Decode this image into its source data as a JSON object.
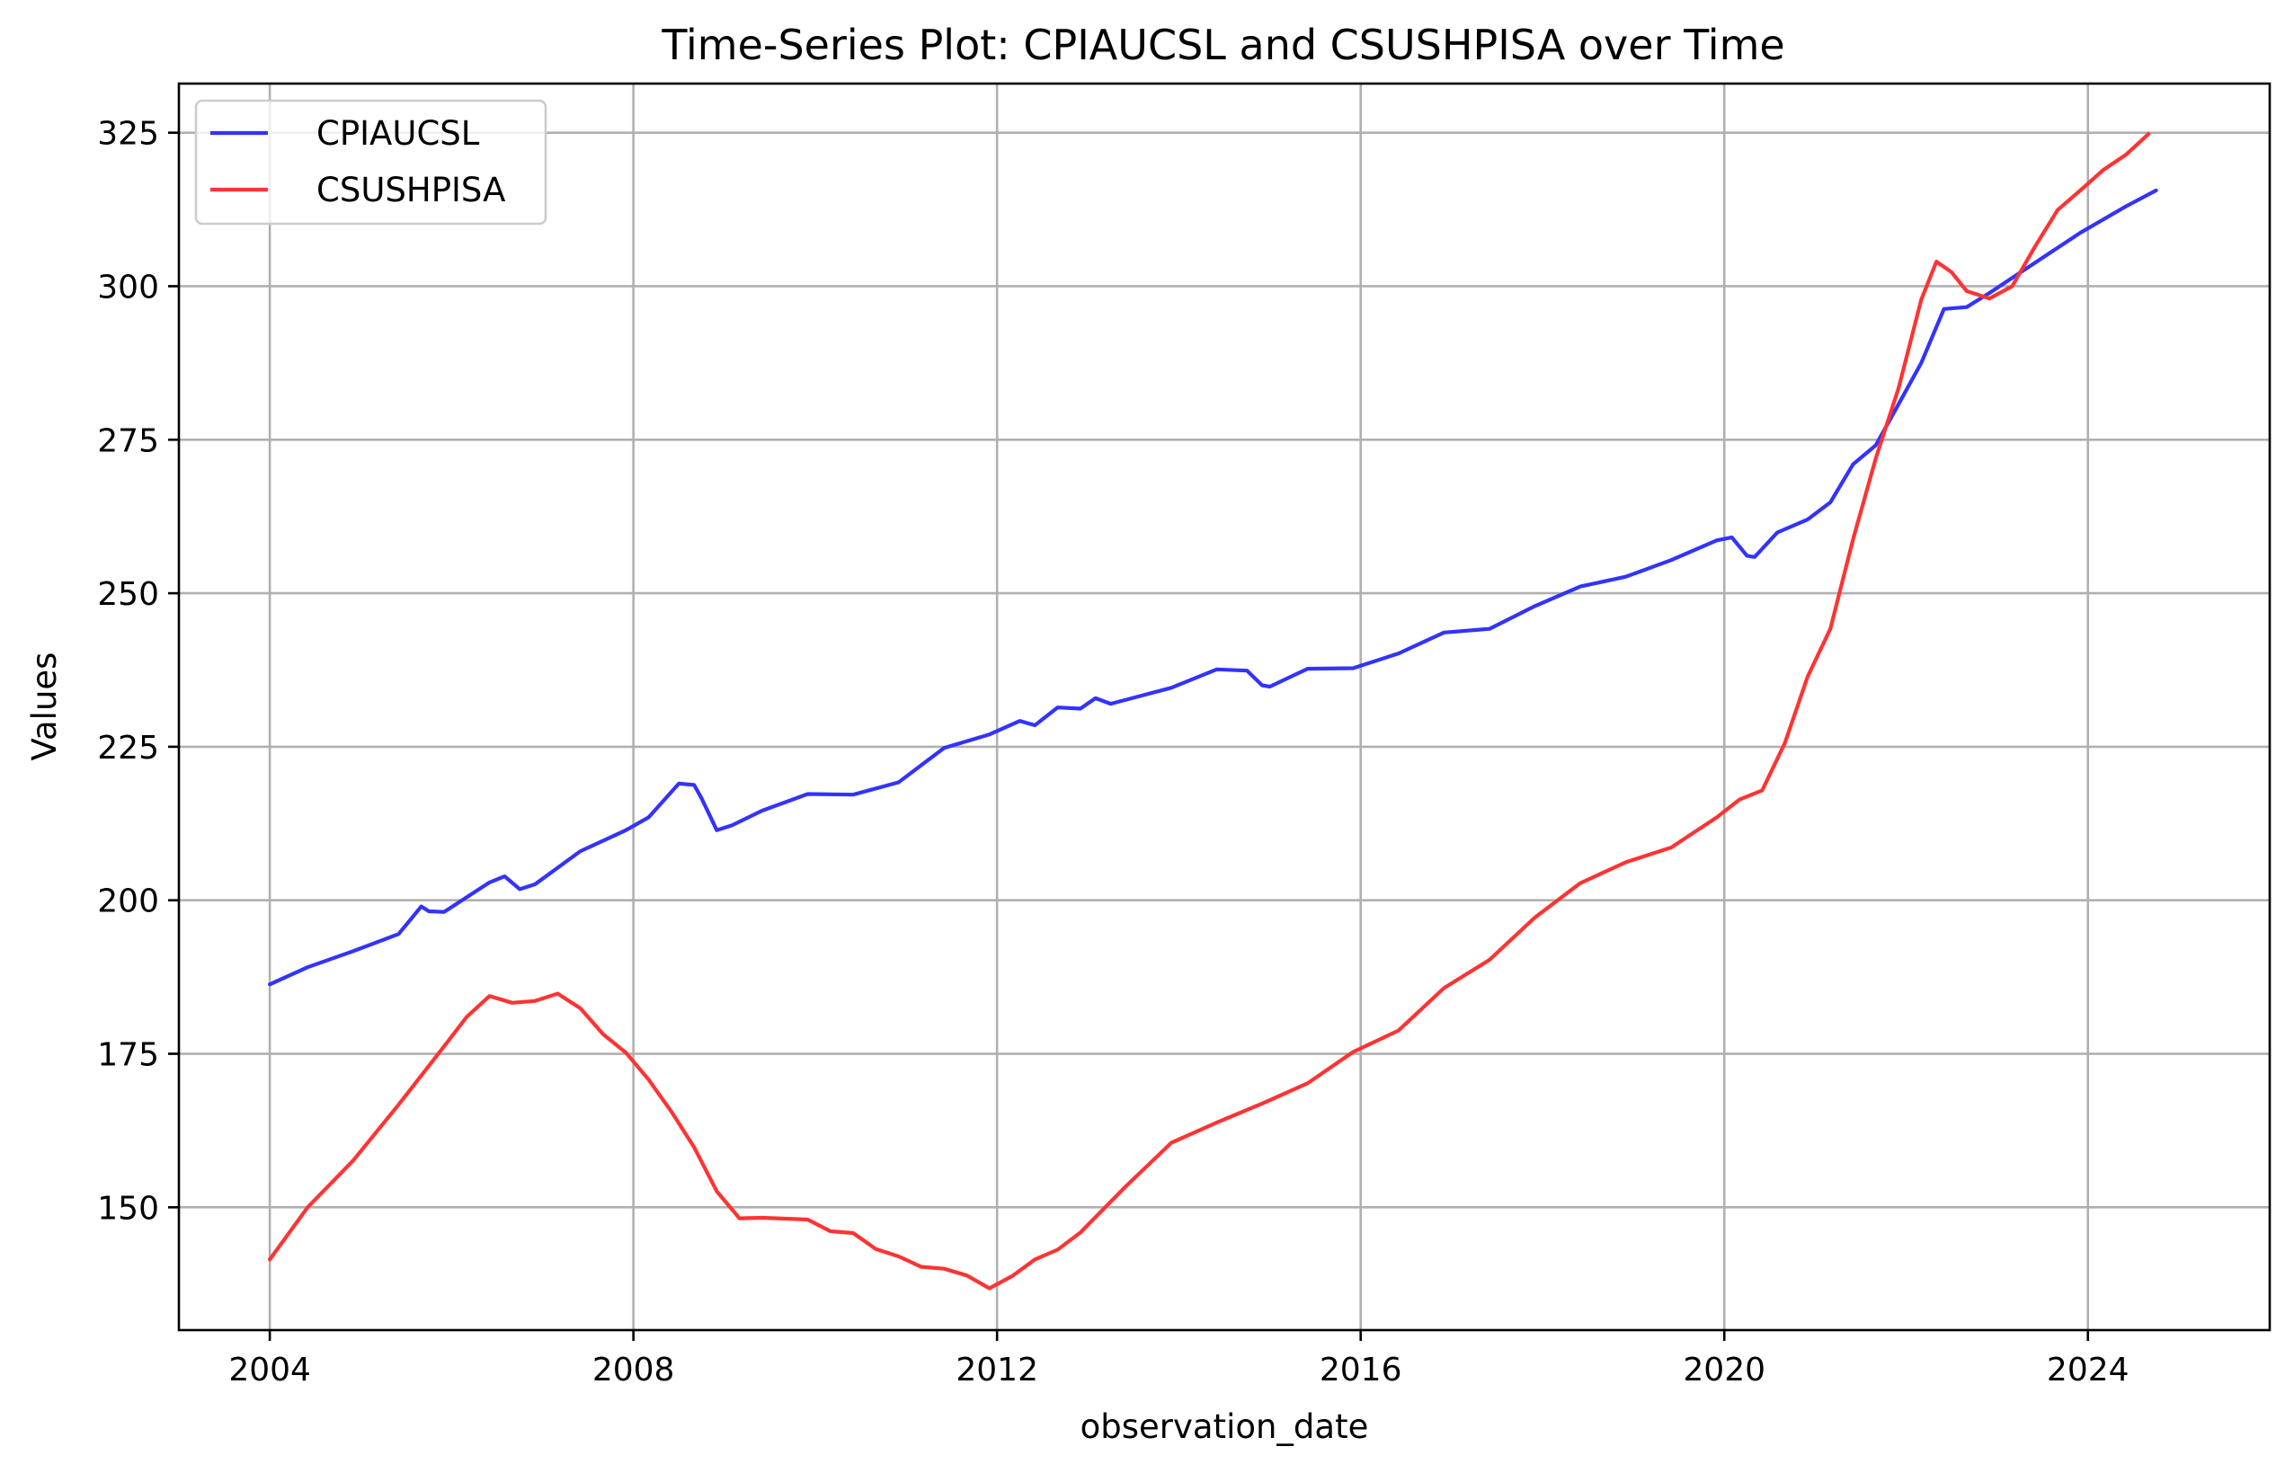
{
  "chart_data": {
    "type": "line",
    "title": "Time-Series Plot: CPIAUCSL and CSUSHPISA over Time",
    "xlabel": "observation_date",
    "ylabel": "Values",
    "x_ticks": [
      "2004",
      "2008",
      "2012",
      "2016",
      "2020",
      "2024"
    ],
    "y_ticks": [
      "150",
      "175",
      "200",
      "225",
      "250",
      "275",
      "300",
      "325"
    ],
    "xlim": [
      "2003-01",
      "2026-01"
    ],
    "ylim": [
      130,
      333
    ],
    "grid": true,
    "legend_position": "top-left",
    "series": [
      {
        "name": "CPIAUCSL",
        "color": "#3333ff",
        "points": [
          [
            "2004-01",
            186.3
          ],
          [
            "2004-06",
            189.1
          ],
          [
            "2004-12",
            191.7
          ],
          [
            "2005-06",
            194.5
          ],
          [
            "2005-09",
            199.0
          ],
          [
            "2005-10",
            198.2
          ],
          [
            "2005-12",
            198.1
          ],
          [
            "2006-06",
            202.9
          ],
          [
            "2006-08",
            203.9
          ],
          [
            "2006-10",
            201.8
          ],
          [
            "2006-12",
            202.6
          ],
          [
            "2007-06",
            208.0
          ],
          [
            "2007-12",
            211.4
          ],
          [
            "2008-03",
            213.5
          ],
          [
            "2008-07",
            219.0
          ],
          [
            "2008-09",
            218.8
          ],
          [
            "2008-10",
            216.6
          ],
          [
            "2008-12",
            211.4
          ],
          [
            "2009-02",
            212.2
          ],
          [
            "2009-06",
            214.6
          ],
          [
            "2009-12",
            217.3
          ],
          [
            "2010-06",
            217.2
          ],
          [
            "2010-12",
            219.2
          ],
          [
            "2011-06",
            224.8
          ],
          [
            "2011-12",
            227.0
          ],
          [
            "2012-04",
            229.2
          ],
          [
            "2012-06",
            228.5
          ],
          [
            "2012-09",
            231.4
          ],
          [
            "2012-12",
            231.2
          ],
          [
            "2013-02",
            232.9
          ],
          [
            "2013-04",
            232.0
          ],
          [
            "2013-12",
            234.6
          ],
          [
            "2014-06",
            237.6
          ],
          [
            "2014-10",
            237.4
          ],
          [
            "2014-12",
            235.0
          ],
          [
            "2015-01",
            234.8
          ],
          [
            "2015-06",
            237.7
          ],
          [
            "2015-12",
            237.8
          ],
          [
            "2016-06",
            240.2
          ],
          [
            "2016-12",
            243.6
          ],
          [
            "2017-06",
            244.2
          ],
          [
            "2017-12",
            247.9
          ],
          [
            "2018-06",
            251.1
          ],
          [
            "2018-12",
            252.7
          ],
          [
            "2019-06",
            255.4
          ],
          [
            "2019-12",
            258.6
          ],
          [
            "2020-02",
            259.1
          ],
          [
            "2020-04",
            256.1
          ],
          [
            "2020-05",
            255.9
          ],
          [
            "2020-08",
            259.9
          ],
          [
            "2020-12",
            262.0
          ],
          [
            "2021-03",
            264.8
          ],
          [
            "2021-06",
            271.0
          ],
          [
            "2021-09",
            274.1
          ],
          [
            "2021-12",
            280.8
          ],
          [
            "2022-03",
            287.5
          ],
          [
            "2022-06",
            296.3
          ],
          [
            "2022-09",
            296.6
          ],
          [
            "2022-12",
            298.9
          ],
          [
            "2023-06",
            303.8
          ],
          [
            "2023-12",
            308.7
          ],
          [
            "2024-06",
            313.0
          ],
          [
            "2024-10",
            315.6
          ]
        ]
      },
      {
        "name": "CSUSHPISA",
        "color": "#ff3333",
        "points": [
          [
            "2004-01",
            141.5
          ],
          [
            "2004-06",
            150.0
          ],
          [
            "2004-12",
            157.6
          ],
          [
            "2005-06",
            166.7
          ],
          [
            "2005-12",
            176.2
          ],
          [
            "2006-03",
            181.0
          ],
          [
            "2006-06",
            184.4
          ],
          [
            "2006-09",
            183.3
          ],
          [
            "2006-12",
            183.6
          ],
          [
            "2007-03",
            184.8
          ],
          [
            "2007-06",
            182.4
          ],
          [
            "2007-09",
            178.2
          ],
          [
            "2007-12",
            175.2
          ],
          [
            "2008-03",
            170.8
          ],
          [
            "2008-06",
            165.6
          ],
          [
            "2008-09",
            159.8
          ],
          [
            "2008-12",
            152.6
          ],
          [
            "2009-03",
            148.2
          ],
          [
            "2009-06",
            148.3
          ],
          [
            "2009-12",
            148.0
          ],
          [
            "2010-03",
            146.1
          ],
          [
            "2010-06",
            145.8
          ],
          [
            "2010-09",
            143.2
          ],
          [
            "2010-12",
            142.0
          ],
          [
            "2011-03",
            140.3
          ],
          [
            "2011-06",
            140.0
          ],
          [
            "2011-09",
            138.9
          ],
          [
            "2011-12",
            136.8
          ],
          [
            "2012-03",
            138.8
          ],
          [
            "2012-06",
            141.5
          ],
          [
            "2012-09",
            143.1
          ],
          [
            "2012-12",
            145.9
          ],
          [
            "2013-06",
            153.4
          ],
          [
            "2013-12",
            160.5
          ],
          [
            "2014-06",
            163.8
          ],
          [
            "2014-12",
            166.9
          ],
          [
            "2015-06",
            170.2
          ],
          [
            "2015-12",
            175.3
          ],
          [
            "2016-06",
            178.8
          ],
          [
            "2016-12",
            185.7
          ],
          [
            "2017-06",
            190.3
          ],
          [
            "2017-12",
            197.2
          ],
          [
            "2018-06",
            202.8
          ],
          [
            "2018-12",
            206.2
          ],
          [
            "2019-06",
            208.6
          ],
          [
            "2019-12",
            213.5
          ],
          [
            "2020-03",
            216.4
          ],
          [
            "2020-06",
            217.9
          ],
          [
            "2020-09",
            225.6
          ],
          [
            "2020-12",
            236.4
          ],
          [
            "2021-03",
            244.2
          ],
          [
            "2021-06",
            258.8
          ],
          [
            "2021-09",
            272.0
          ],
          [
            "2021-12",
            283.4
          ],
          [
            "2022-03",
            297.8
          ],
          [
            "2022-05",
            304.0
          ],
          [
            "2022-07",
            302.3
          ],
          [
            "2022-09",
            299.2
          ],
          [
            "2022-12",
            298.0
          ],
          [
            "2023-03",
            300.0
          ],
          [
            "2023-06",
            306.4
          ],
          [
            "2023-09",
            312.4
          ],
          [
            "2023-12",
            315.6
          ],
          [
            "2024-03",
            318.9
          ],
          [
            "2024-06",
            321.4
          ],
          [
            "2024-09",
            324.8
          ]
        ]
      }
    ]
  }
}
